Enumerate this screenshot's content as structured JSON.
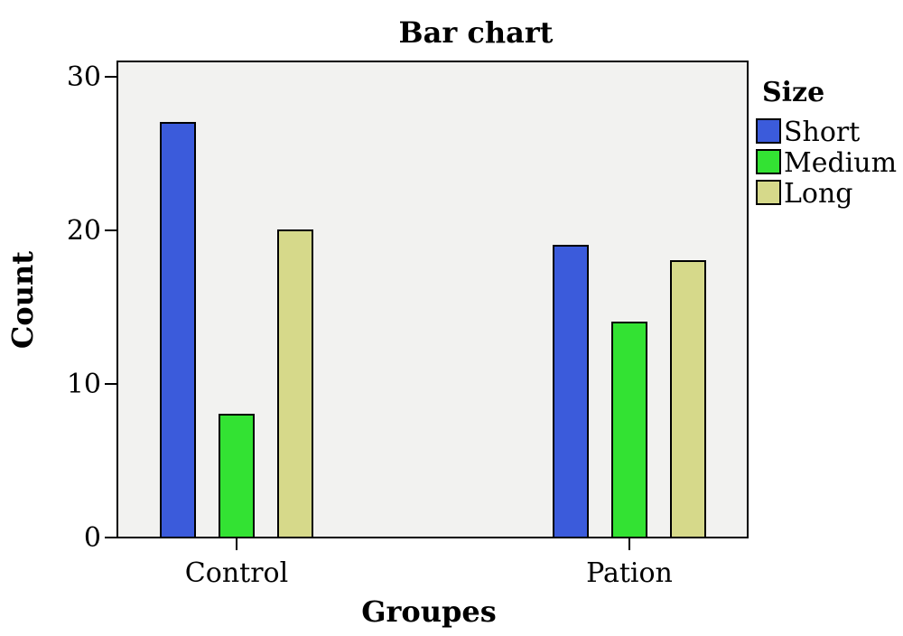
{
  "chart_data": {
    "type": "bar",
    "title": "Bar chart",
    "xlabel": "Groupes",
    "ylabel": "Count",
    "categories": [
      "Control",
      "Pation"
    ],
    "series": [
      {
        "name": "Short",
        "color": "#3b5bdb",
        "values": [
          27,
          19
        ]
      },
      {
        "name": "Medium",
        "color": "#33e233",
        "values": [
          8,
          14
        ]
      },
      {
        "name": "Long",
        "color": "#d6d98a",
        "values": [
          20,
          18
        ]
      }
    ],
    "ylim": [
      0,
      31
    ],
    "yticks": [
      0,
      10,
      20,
      30
    ],
    "legend": {
      "title": "Size",
      "position": "right"
    },
    "plot_background": "#f2f2f0",
    "grid": false
  }
}
